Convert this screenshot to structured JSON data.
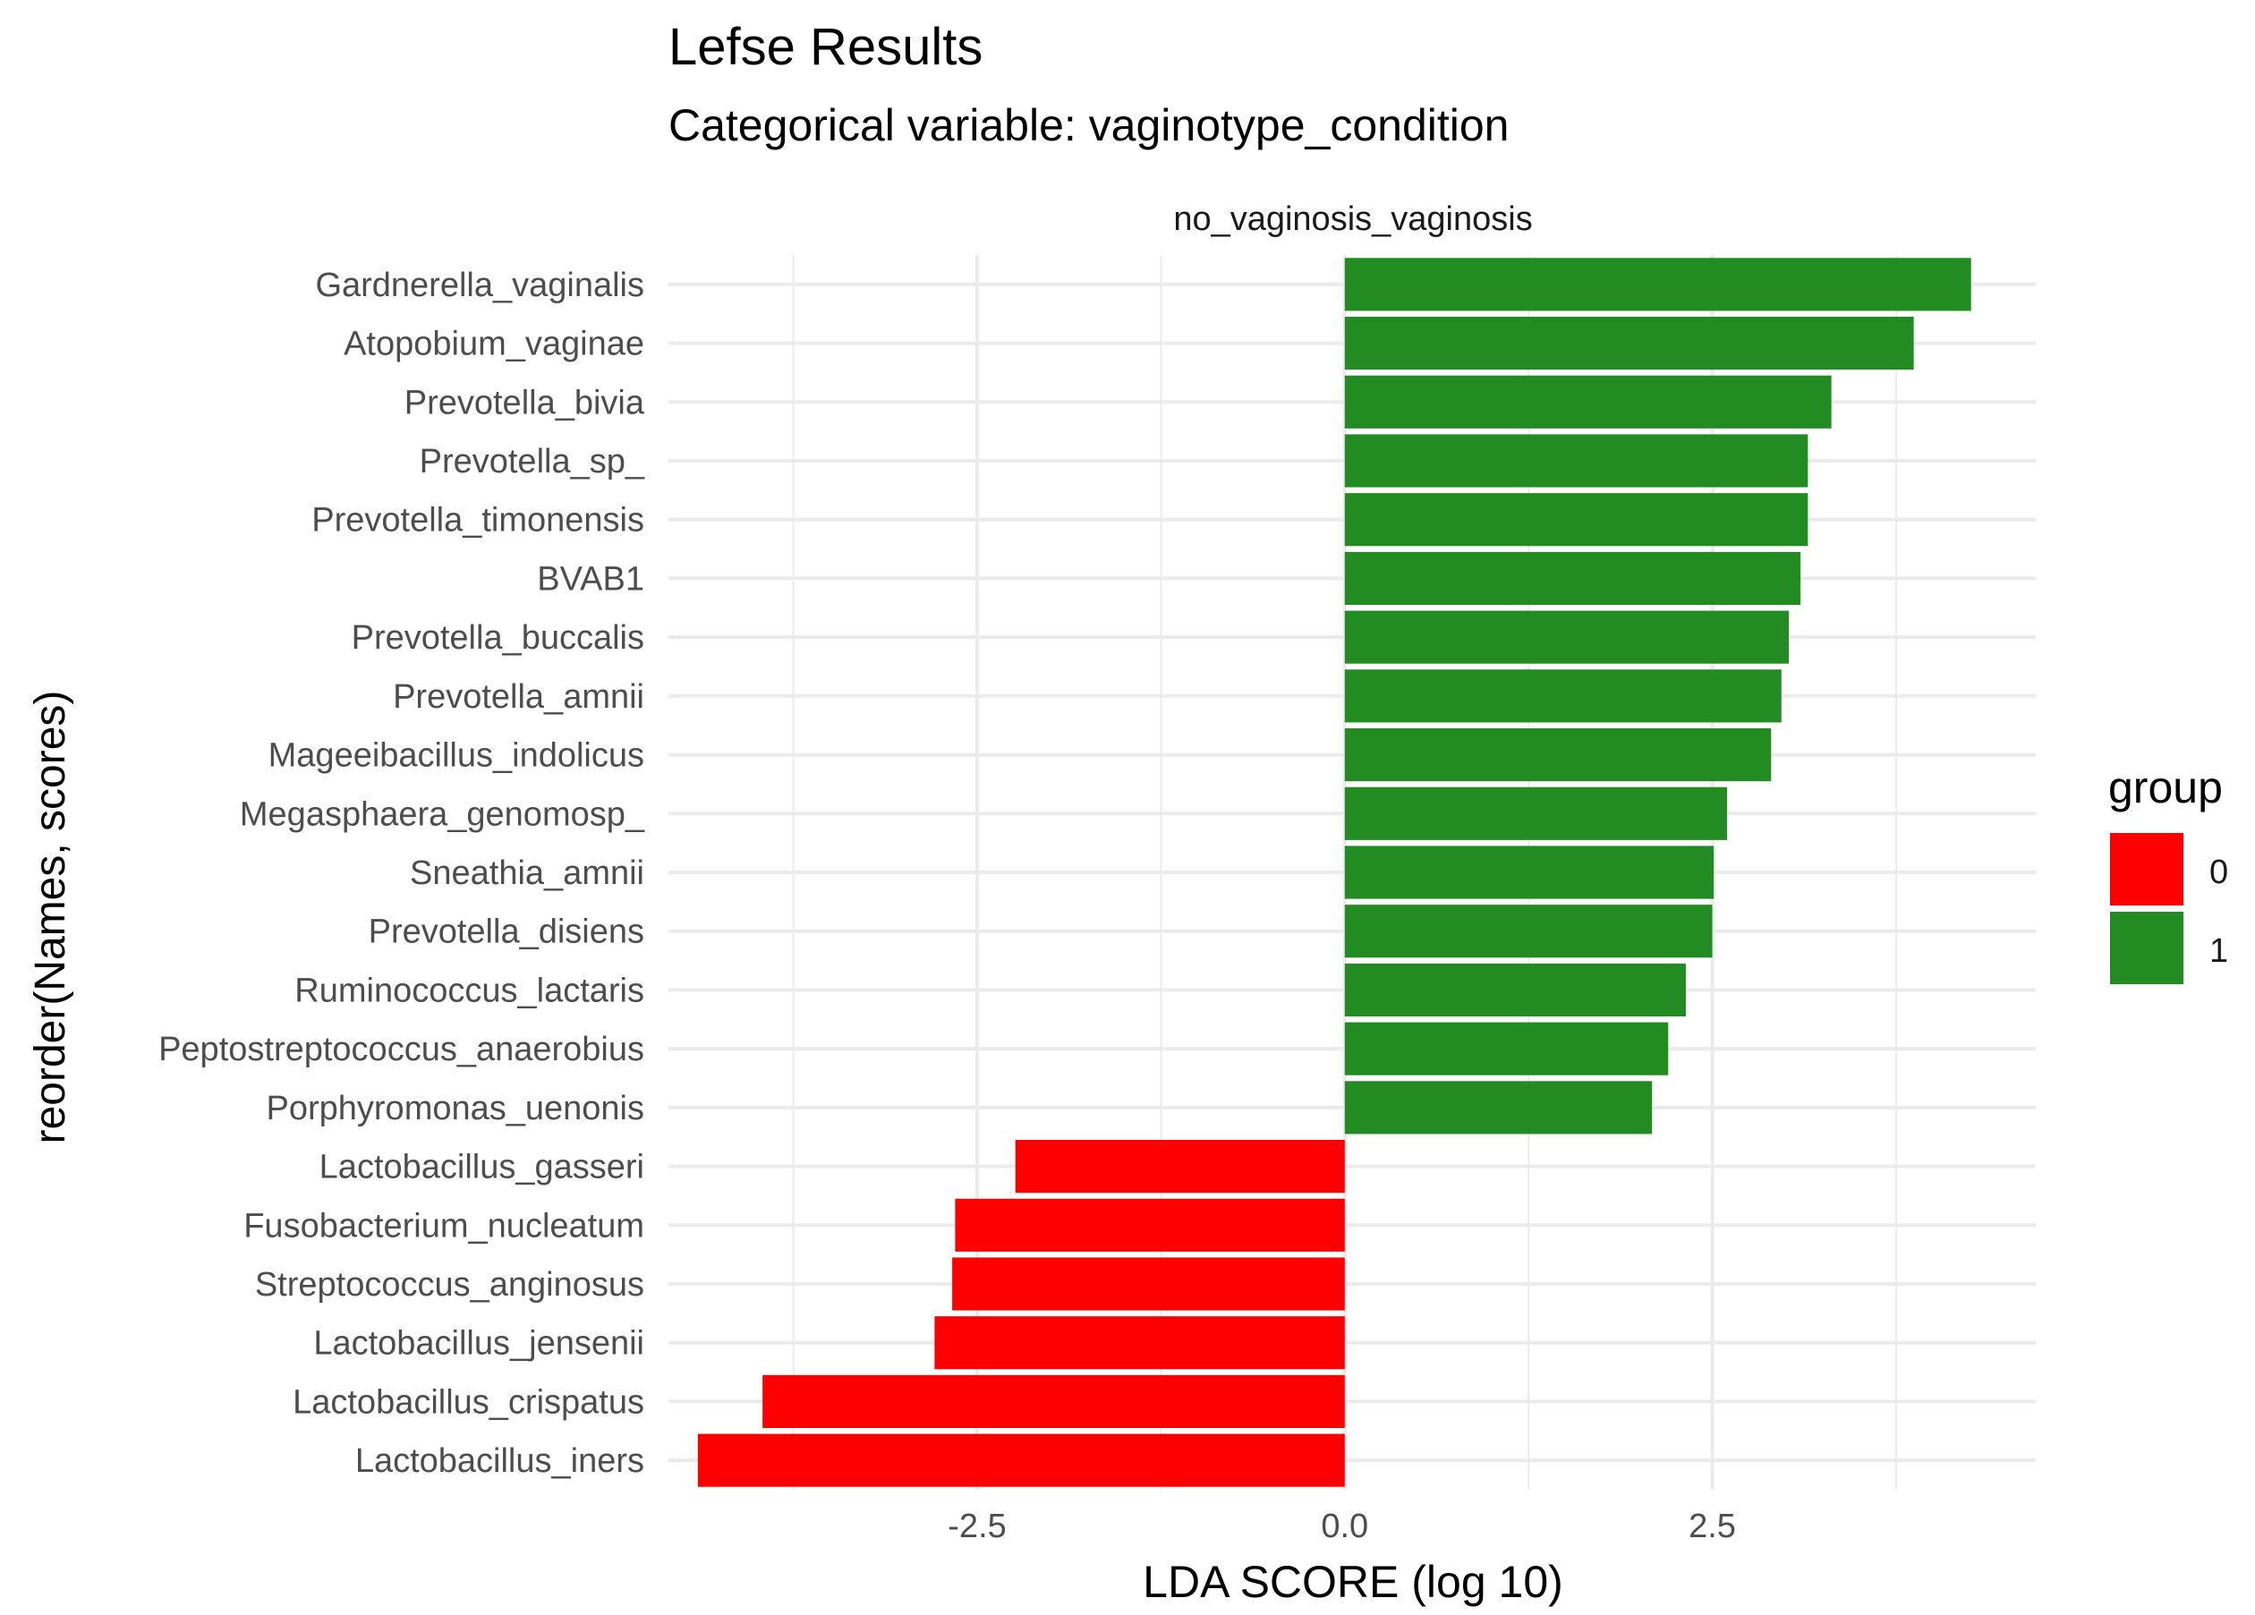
{
  "chart_data": {
    "type": "bar",
    "orientation": "horizontal",
    "title": "Lefse Results",
    "subtitle": "Categorical variable: vaginotype_condition",
    "facet_label": "no_vaginosis_vaginosis",
    "xlabel": "LDA SCORE (log 10)",
    "ylabel": "reorder(Names, scores)",
    "xlim": [
      -4.6,
      4.7
    ],
    "x_ticks": [
      {
        "value": -2.5,
        "label": "-2.5"
      },
      {
        "value": 0,
        "label": "0.0"
      },
      {
        "value": 2.5,
        "label": "2.5"
      }
    ],
    "x_minor_gridlines": [
      -3.75,
      -1.25,
      1.25,
      3.75
    ],
    "grid": true,
    "legend": {
      "title": "group",
      "position": "right",
      "entries": [
        {
          "label": "0",
          "color": "#ff0000"
        },
        {
          "label": "1",
          "color": "#228b22"
        }
      ]
    },
    "categories": [
      "Gardnerella_vaginalis",
      "Atopobium_vaginae",
      "Prevotella_bivia",
      "Prevotella_sp_",
      "Prevotella_timonensis",
      "BVAB1",
      "Prevotella_buccalis",
      "Prevotella_amnii",
      "Mageeibacillus_indolicus",
      "Megasphaera_genomosp_",
      "Sneathia_amnii",
      "Prevotella_disiens",
      "Ruminococcus_lactaris",
      "Peptostreptococcus_anaerobius",
      "Porphyromonas_uenonis",
      "Lactobacillus_gasseri",
      "Fusobacterium_nucleatum",
      "Streptococcus_anginosus",
      "Lactobacillus_jensenii",
      "Lactobacillus_crispatus",
      "Lactobacillus_iners"
    ],
    "values": [
      4.26,
      3.87,
      3.31,
      3.15,
      3.15,
      3.1,
      3.02,
      2.97,
      2.9,
      2.6,
      2.51,
      2.5,
      2.32,
      2.2,
      2.09,
      -2.24,
      -2.65,
      -2.67,
      -2.79,
      -3.96,
      -4.4
    ],
    "groups": [
      "1",
      "1",
      "1",
      "1",
      "1",
      "1",
      "1",
      "1",
      "1",
      "1",
      "1",
      "1",
      "1",
      "1",
      "1",
      "0",
      "0",
      "0",
      "0",
      "0",
      "0"
    ]
  }
}
